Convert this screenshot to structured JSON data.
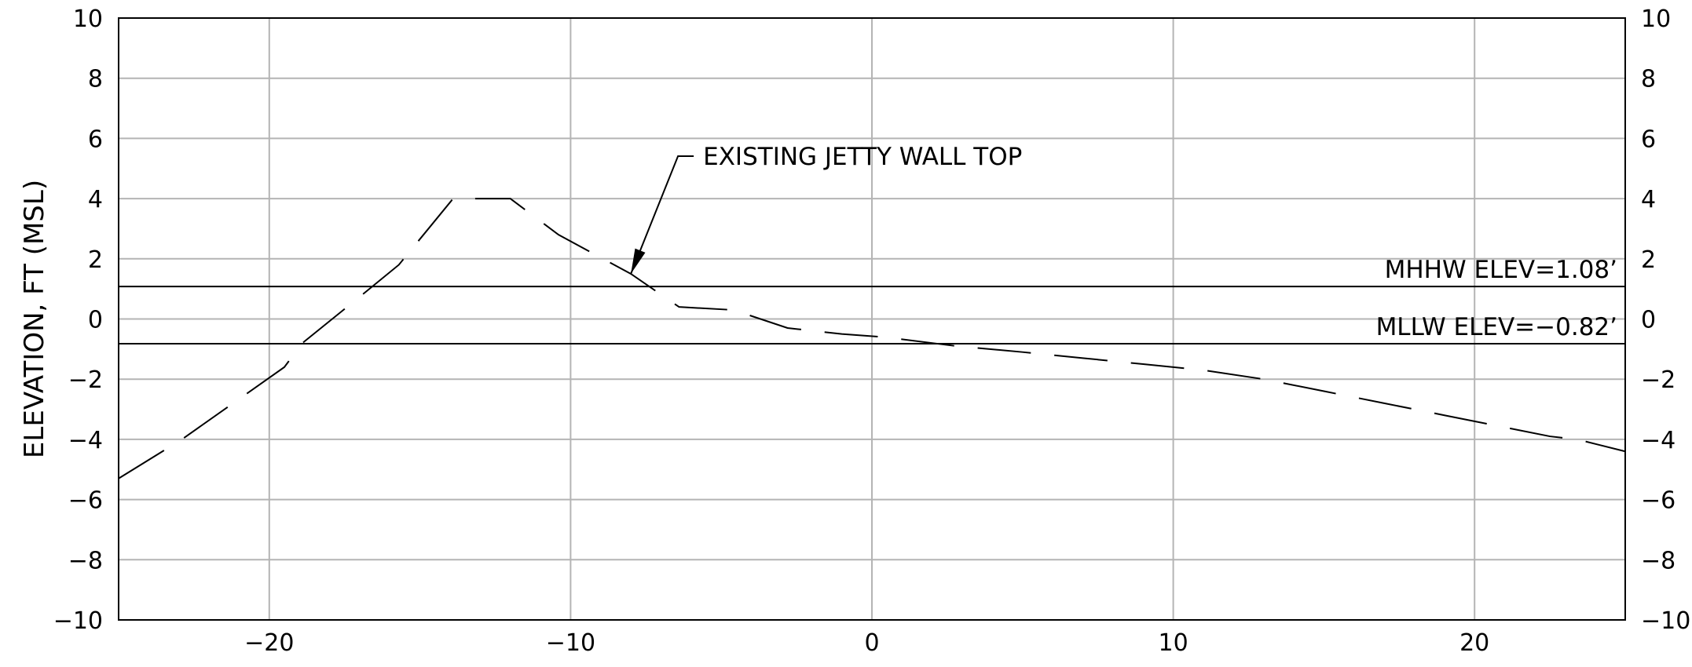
{
  "chart_data": {
    "type": "line",
    "title": "",
    "xlabel": "",
    "ylabel": "ELEVATION, FT (MSL)",
    "xlim": [
      -25,
      25
    ],
    "ylim": [
      -10,
      10
    ],
    "x_ticks": [
      -20,
      -10,
      0,
      10,
      20
    ],
    "x_tick_labels": [
      "−20",
      "−10",
      "0",
      "10",
      "20"
    ],
    "y_ticks": [
      -10,
      -8,
      -6,
      -4,
      -2,
      0,
      2,
      4,
      6,
      8,
      10
    ],
    "y_tick_labels": [
      "−10",
      "−8",
      "−6",
      "−4",
      "−2",
      "0",
      "2",
      "4",
      "6",
      "8",
      "10"
    ],
    "grid": true,
    "right_axis_labels": true,
    "series": [
      {
        "style": "dashed",
        "color": "#000000",
        "x": [
          -25.0,
          -22.9,
          -19.5,
          -18.9,
          -16.8,
          -15.7,
          -13.9,
          -12.0,
          -10.4,
          -8.0,
          -6.4,
          -4.6,
          -2.8,
          -1.0,
          0.4,
          2.8,
          5.0,
          7.0,
          9.0,
          11.0,
          13.0,
          15.0,
          17.0,
          19.0,
          21.0,
          22.5,
          23.4,
          25.0
        ],
        "y": [
          -5.3,
          -4.0,
          -1.6,
          -0.8,
          0.9,
          1.8,
          4.0,
          4.0,
          2.8,
          1.5,
          0.4,
          0.3,
          -0.3,
          -0.5,
          -0.6,
          -0.9,
          -1.1,
          -1.3,
          -1.5,
          -1.7,
          -2.0,
          -2.4,
          -2.8,
          -3.2,
          -3.6,
          -3.9,
          -4.0,
          -4.4
        ]
      }
    ],
    "reference_lines": [
      {
        "label": "MHHW ELEV=1.08’",
        "y": 1.08
      },
      {
        "label": "MLLW ELEV=−0.82’",
        "y": -0.82
      }
    ],
    "annotations": [
      {
        "text": "EXISTING JETTY WALL TOP",
        "target": {
          "x": -8.0,
          "y": 1.5
        }
      }
    ]
  }
}
